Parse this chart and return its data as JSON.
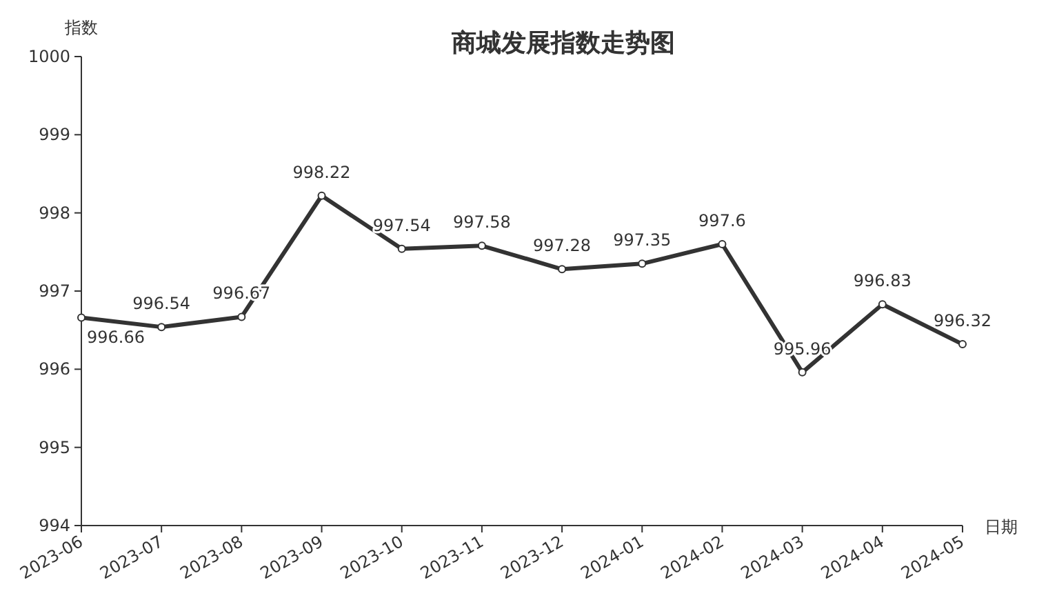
{
  "chart_data": {
    "type": "line",
    "title": "商城发展指数走势图",
    "ylabel": "指数",
    "xlabel": "日期",
    "categories": [
      "2023-06",
      "2023-07",
      "2023-08",
      "2023-09",
      "2023-10",
      "2023-11",
      "2023-12",
      "2024-01",
      "2024-02",
      "2024-03",
      "2024-04",
      "2024-05"
    ],
    "series": [
      {
        "color": "#333333",
        "values": [
          996.66,
          996.54,
          996.67,
          998.22,
          997.54,
          997.58,
          997.28,
          997.35,
          997.6,
          995.96,
          996.83,
          996.32
        ]
      }
    ],
    "ylim": [
      994,
      1000
    ],
    "yticks": [
      994,
      995,
      996,
      997,
      998,
      999,
      1000
    ],
    "grid": false,
    "marker": "circle",
    "line_style": "solid",
    "data_labels": true
  }
}
